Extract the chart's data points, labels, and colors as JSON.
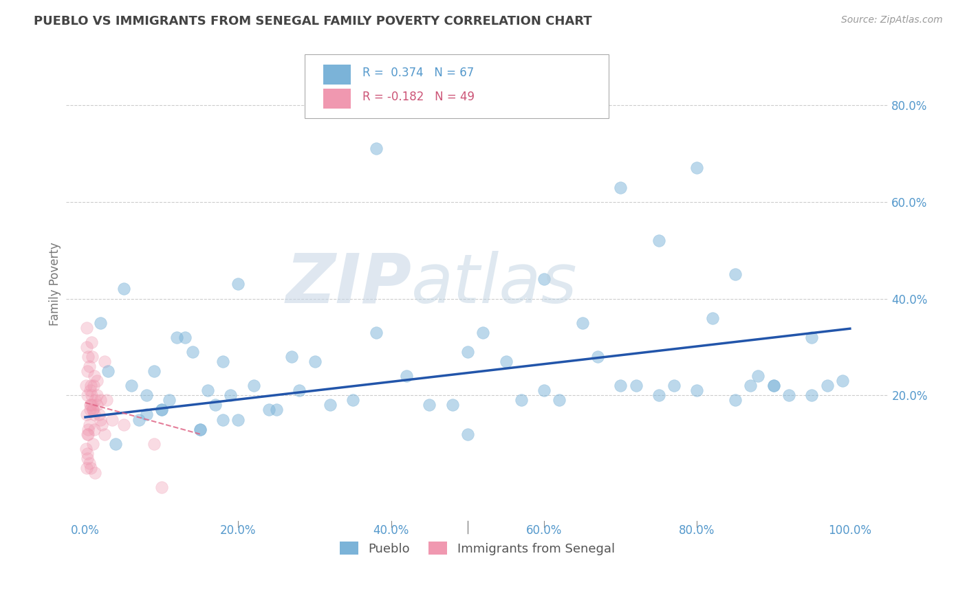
{
  "title": "PUEBLO VS IMMIGRANTS FROM SENEGAL FAMILY POVERTY CORRELATION CHART",
  "source": "Source: ZipAtlas.com",
  "ylabel": "Family Poverty",
  "pueblo_color": "#7bb3d8",
  "senegal_color": "#f098b0",
  "trend_blue_color": "#2255aa",
  "trend_pink_color": "#e06888",
  "watermark": "ZIPatlas",
  "watermark_color": "#ccd8e8",
  "grid_color": "#cccccc",
  "title_color": "#444444",
  "axis_tick_color": "#5599cc",
  "ylabel_color": "#777777",
  "ytick_vals": [
    0.0,
    0.2,
    0.4,
    0.6,
    0.8
  ],
  "ytick_labels_right": [
    "",
    "20.0%",
    "40.0%",
    "60.0%",
    "80.0%"
  ],
  "xtick_vals": [
    0.0,
    0.2,
    0.4,
    0.6,
    0.8,
    1.0
  ],
  "xtick_labels": [
    "0.0%",
    "20.0%",
    "40.0%",
    "60.0%",
    "80.0%",
    "100.0%"
  ],
  "xlim": [
    -0.025,
    1.05
  ],
  "ylim": [
    -0.06,
    0.92
  ],
  "pueblo_x": [
    0.02,
    0.04,
    0.06,
    0.07,
    0.08,
    0.09,
    0.1,
    0.11,
    0.12,
    0.14,
    0.15,
    0.16,
    0.17,
    0.18,
    0.19,
    0.2,
    0.22,
    0.24,
    0.27,
    0.3,
    0.32,
    0.35,
    0.38,
    0.42,
    0.45,
    0.48,
    0.5,
    0.52,
    0.55,
    0.57,
    0.6,
    0.62,
    0.65,
    0.67,
    0.7,
    0.72,
    0.75,
    0.77,
    0.8,
    0.82,
    0.85,
    0.87,
    0.88,
    0.9,
    0.92,
    0.95,
    0.97,
    0.99,
    0.03,
    0.05,
    0.08,
    0.1,
    0.13,
    0.15,
    0.18,
    0.2,
    0.25,
    0.28,
    0.38,
    0.5,
    0.6,
    0.7,
    0.75,
    0.8,
    0.85,
    0.9,
    0.95
  ],
  "pueblo_y": [
    0.35,
    0.1,
    0.22,
    0.15,
    0.2,
    0.25,
    0.17,
    0.19,
    0.32,
    0.29,
    0.13,
    0.21,
    0.18,
    0.27,
    0.2,
    0.15,
    0.22,
    0.17,
    0.28,
    0.27,
    0.18,
    0.19,
    0.33,
    0.24,
    0.18,
    0.18,
    0.12,
    0.33,
    0.27,
    0.19,
    0.21,
    0.19,
    0.35,
    0.28,
    0.22,
    0.22,
    0.2,
    0.22,
    0.21,
    0.36,
    0.19,
    0.22,
    0.24,
    0.22,
    0.2,
    0.2,
    0.22,
    0.23,
    0.25,
    0.42,
    0.16,
    0.17,
    0.32,
    0.13,
    0.15,
    0.43,
    0.17,
    0.21,
    0.71,
    0.29,
    0.44,
    0.63,
    0.52,
    0.67,
    0.45,
    0.22,
    0.32
  ],
  "senegal_x": [
    0.005,
    0.008,
    0.01,
    0.012,
    0.015,
    0.018,
    0.02,
    0.022,
    0.025,
    0.028,
    0.003,
    0.006,
    0.009,
    0.012,
    0.015,
    0.004,
    0.007,
    0.01,
    0.013,
    0.003,
    0.006,
    0.009,
    0.012,
    0.002,
    0.005,
    0.008,
    0.011,
    0.003,
    0.005,
    0.007,
    0.01,
    0.013,
    0.002,
    0.004,
    0.007,
    0.001,
    0.003,
    0.006,
    0.002,
    0.004,
    0.001,
    0.003,
    0.002,
    0.015,
    0.02,
    0.025,
    0.035,
    0.05,
    0.09,
    0.1
  ],
  "senegal_y": [
    0.14,
    0.2,
    0.17,
    0.13,
    0.18,
    0.16,
    0.15,
    0.14,
    0.12,
    0.19,
    0.25,
    0.21,
    0.18,
    0.16,
    0.2,
    0.13,
    0.22,
    0.17,
    0.19,
    0.12,
    0.17,
    0.28,
    0.24,
    0.3,
    0.26,
    0.31,
    0.22,
    0.08,
    0.06,
    0.05,
    0.1,
    0.04,
    0.34,
    0.28,
    0.18,
    0.22,
    0.2,
    0.18,
    0.16,
    0.12,
    0.09,
    0.07,
    0.05,
    0.23,
    0.19,
    0.27,
    0.15,
    0.14,
    0.1,
    0.01
  ],
  "trend_blue_x0": 0.0,
  "trend_blue_y0": 0.155,
  "trend_blue_x1": 1.0,
  "trend_blue_y1": 0.338,
  "trend_pink_x0": 0.0,
  "trend_pink_y0": 0.185,
  "trend_pink_x1": 0.15,
  "trend_pink_y1": 0.12
}
